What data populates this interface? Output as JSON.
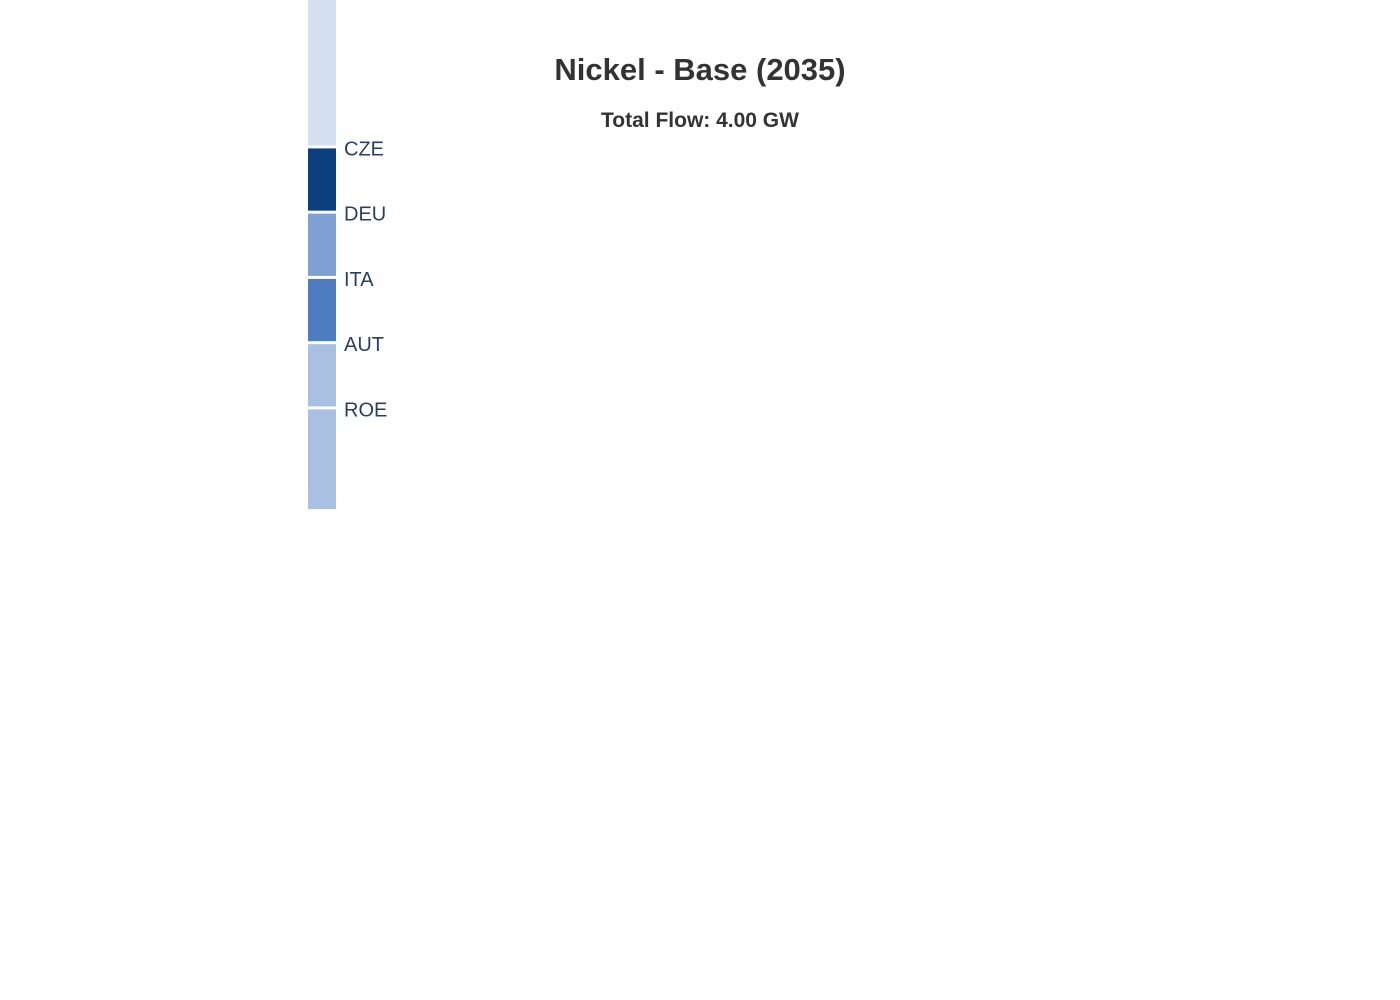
{
  "chart_data": {
    "type": "sankey",
    "title": "Nickel - Base (2035)",
    "subtitle": "Total Flow: 4.00 GW",
    "nodes": [
      {
        "label": "",
        "value": 1.2,
        "color": "#d4e0f0"
      },
      {
        "label": "CZE",
        "value": 0.5,
        "color": "#0b3f7e"
      },
      {
        "label": "DEU",
        "value": 0.5,
        "color": "#7fa0d2"
      },
      {
        "label": "ITA",
        "value": 0.5,
        "color": "#4e7cc0"
      },
      {
        "label": "AUT",
        "value": 0.5,
        "color": "#a9c0e2"
      },
      {
        "label": "ROE",
        "value": 0.8,
        "color": "#a9c0e2"
      }
    ]
  }
}
